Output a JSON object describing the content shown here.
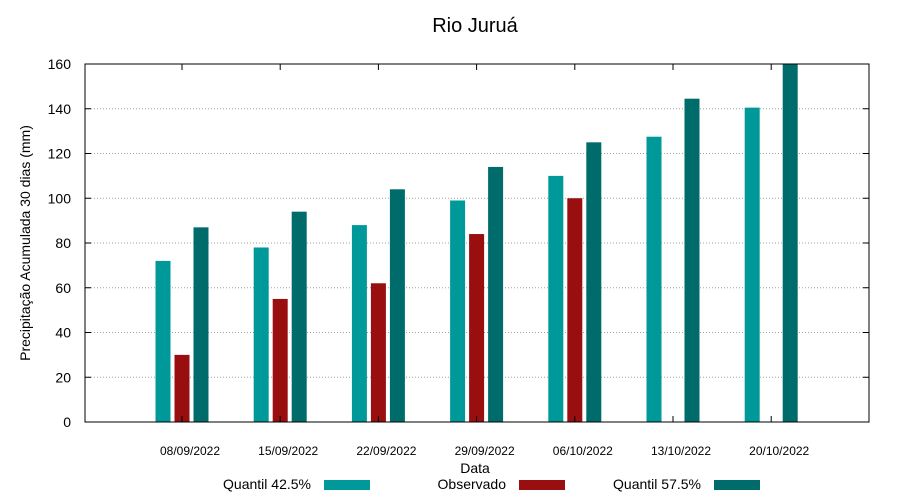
{
  "chart_data": {
    "type": "bar",
    "title": "Rio Juruá",
    "xlabel": "Data",
    "ylabel": "Precipitação Acumulada 30 dias (mm)",
    "ylim": [
      0,
      160
    ],
    "yticks": [
      0,
      20,
      40,
      60,
      80,
      100,
      120,
      140,
      160
    ],
    "grid": true,
    "legend_position": "bottom",
    "categories": [
      "08/09/2022",
      "15/09/2022",
      "22/09/2022",
      "29/09/2022",
      "06/10/2022",
      "13/10/2022",
      "20/10/2022"
    ],
    "series": [
      {
        "name": "Quantil 42.5%",
        "color": "#009999",
        "values": [
          72,
          78,
          88,
          99,
          110,
          127.5,
          140.5
        ]
      },
      {
        "name": "Observado",
        "color": "#990f0f",
        "values": [
          30,
          55,
          62,
          84,
          100,
          null,
          null
        ]
      },
      {
        "name": "Quantil 57.5%",
        "color": "#006b6b",
        "values": [
          87,
          94,
          104,
          114,
          125,
          144.5,
          160
        ]
      }
    ]
  }
}
